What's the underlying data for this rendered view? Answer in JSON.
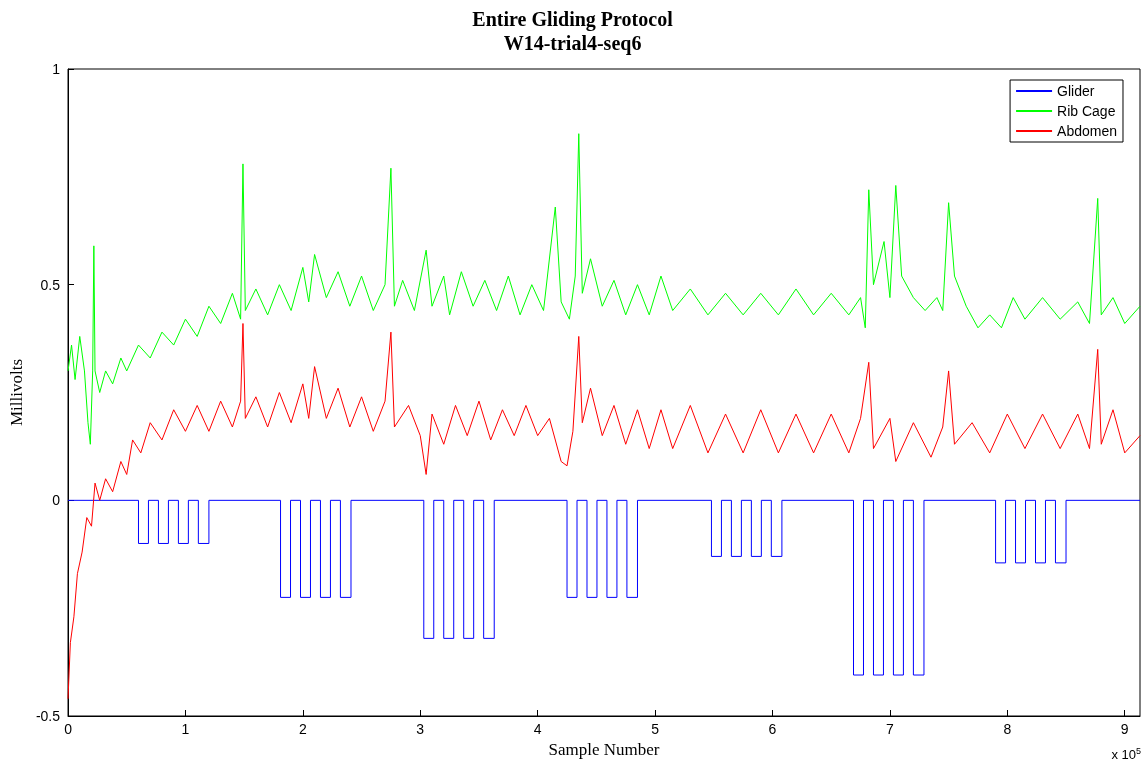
{
  "chart_data": {
    "type": "line",
    "title": "Entire Gliding Protocol",
    "subtitle": "W14-trial4-seq6",
    "xlabel": "Sample Number",
    "ylabel": "Millivolts",
    "annotations": [
      "x 10$^{5}$"
    ],
    "xlim": [
      0,
      9.13
    ],
    "xticks": [
      0,
      1,
      2,
      3,
      4,
      5,
      6,
      7,
      8,
      9
    ],
    "ylim": [
      -0.5,
      1
    ],
    "yticks": [
      -0.5,
      0,
      0.5,
      1
    ],
    "grid": false,
    "legend": "top right",
    "marker": "none",
    "line_style": "solid",
    "series": [
      {
        "name": "Glider",
        "color": "#0000ff",
        "x": [
          0,
          0.6,
          0.6,
          0.685,
          0.685,
          0.77,
          0.77,
          0.855,
          0.855,
          0.94,
          0.94,
          1.025,
          1.025,
          1.11,
          1.11,
          1.2,
          1.2,
          1.81,
          1.81,
          1.895,
          1.895,
          1.98,
          1.98,
          2.065,
          2.065,
          2.15,
          2.15,
          2.235,
          2.235,
          2.32,
          2.32,
          2.41,
          2.41,
          3.03,
          3.03,
          3.115,
          3.115,
          3.2,
          3.2,
          3.285,
          3.285,
          3.37,
          3.37,
          3.455,
          3.455,
          3.54,
          3.54,
          3.63,
          3.63,
          4.25,
          4.25,
          4.335,
          4.335,
          4.42,
          4.42,
          4.505,
          4.505,
          4.59,
          4.59,
          4.675,
          4.675,
          4.76,
          4.76,
          4.85,
          4.85,
          5.48,
          5.48,
          5.565,
          5.565,
          5.65,
          5.65,
          5.735,
          5.735,
          5.82,
          5.82,
          5.905,
          5.905,
          5.99,
          5.99,
          6.08,
          6.08,
          6.69,
          6.69,
          6.775,
          6.775,
          6.86,
          6.86,
          6.945,
          6.945,
          7.03,
          7.03,
          7.115,
          7.115,
          7.2,
          7.2,
          7.29,
          7.29,
          7.9,
          7.9,
          7.985,
          7.985,
          8.07,
          8.07,
          8.155,
          8.155,
          8.24,
          8.24,
          8.325,
          8.325,
          8.41,
          8.41,
          8.5,
          8.5,
          9.13
        ],
        "values": [
          0,
          0,
          -0.1,
          -0.1,
          0,
          0,
          -0.1,
          -0.1,
          0,
          0,
          -0.1,
          -0.1,
          0,
          0,
          -0.1,
          -0.1,
          0,
          0,
          -0.225,
          -0.225,
          0,
          0,
          -0.225,
          -0.225,
          0,
          0,
          -0.225,
          -0.225,
          0,
          0,
          -0.225,
          -0.225,
          0,
          0,
          -0.32,
          -0.32,
          0,
          0,
          -0.32,
          -0.32,
          0,
          0,
          -0.32,
          -0.32,
          0,
          0,
          -0.32,
          -0.32,
          0,
          0,
          -0.225,
          -0.225,
          0,
          0,
          -0.225,
          -0.225,
          0,
          0,
          -0.225,
          -0.225,
          0,
          0,
          -0.225,
          -0.225,
          0,
          0,
          -0.13,
          -0.13,
          0,
          0,
          -0.13,
          -0.13,
          0,
          0,
          -0.13,
          -0.13,
          0,
          0,
          -0.13,
          -0.13,
          0,
          0,
          -0.405,
          -0.405,
          0,
          0,
          -0.405,
          -0.405,
          0,
          0,
          -0.405,
          -0.405,
          0,
          0,
          -0.405,
          -0.405,
          0,
          0,
          -0.145,
          -0.145,
          0,
          0,
          -0.145,
          -0.145,
          0,
          0,
          -0.145,
          -0.145,
          0,
          0,
          -0.145,
          -0.145,
          0,
          0
        ]
      },
      {
        "name": "Rib Cage",
        "color": "#00ff00",
        "x": [
          0,
          0.03,
          0.06,
          0.1,
          0.14,
          0.17,
          0.19,
          0.21,
          0.22,
          0.23,
          0.27,
          0.32,
          0.38,
          0.45,
          0.5,
          0.6,
          0.7,
          0.8,
          0.9,
          1.0,
          1.1,
          1.2,
          1.3,
          1.4,
          1.47,
          1.49,
          1.51,
          1.6,
          1.7,
          1.8,
          1.9,
          2.0,
          2.05,
          2.1,
          2.2,
          2.3,
          2.4,
          2.5,
          2.6,
          2.7,
          2.75,
          2.78,
          2.85,
          2.95,
          3.05,
          3.1,
          3.2,
          3.25,
          3.35,
          3.45,
          3.55,
          3.65,
          3.75,
          3.85,
          3.95,
          4.05,
          4.15,
          4.2,
          4.27,
          4.32,
          4.35,
          4.38,
          4.45,
          4.55,
          4.65,
          4.75,
          4.85,
          4.95,
          5.05,
          5.15,
          5.3,
          5.45,
          5.6,
          5.75,
          5.9,
          6.05,
          6.2,
          6.35,
          6.5,
          6.65,
          6.75,
          6.79,
          6.82,
          6.86,
          6.95,
          7.0,
          7.05,
          7.1,
          7.2,
          7.3,
          7.4,
          7.45,
          7.5,
          7.55,
          7.65,
          7.75,
          7.85,
          7.95,
          8.05,
          8.15,
          8.3,
          8.45,
          8.6,
          8.7,
          8.77,
          8.8,
          8.9,
          9.0,
          9.13
        ],
        "values": [
          0.3,
          0.36,
          0.28,
          0.38,
          0.3,
          0.18,
          0.13,
          0.3,
          0.59,
          0.3,
          0.25,
          0.3,
          0.27,
          0.33,
          0.3,
          0.36,
          0.33,
          0.39,
          0.36,
          0.42,
          0.38,
          0.45,
          0.41,
          0.48,
          0.42,
          0.78,
          0.44,
          0.49,
          0.43,
          0.5,
          0.44,
          0.54,
          0.46,
          0.57,
          0.47,
          0.53,
          0.45,
          0.52,
          0.44,
          0.5,
          0.77,
          0.45,
          0.51,
          0.44,
          0.58,
          0.45,
          0.52,
          0.43,
          0.53,
          0.45,
          0.51,
          0.44,
          0.52,
          0.43,
          0.5,
          0.44,
          0.68,
          0.46,
          0.42,
          0.52,
          0.85,
          0.48,
          0.56,
          0.45,
          0.51,
          0.43,
          0.5,
          0.43,
          0.52,
          0.44,
          0.49,
          0.43,
          0.48,
          0.43,
          0.48,
          0.43,
          0.49,
          0.43,
          0.48,
          0.43,
          0.47,
          0.4,
          0.72,
          0.5,
          0.6,
          0.47,
          0.73,
          0.52,
          0.47,
          0.44,
          0.47,
          0.44,
          0.69,
          0.52,
          0.45,
          0.4,
          0.43,
          0.4,
          0.47,
          0.42,
          0.47,
          0.42,
          0.46,
          0.41,
          0.7,
          0.43,
          0.47,
          0.41,
          0.45
        ]
      },
      {
        "name": "Abdomen",
        "color": "#ff0000",
        "x": [
          0,
          0.02,
          0.05,
          0.08,
          0.12,
          0.16,
          0.2,
          0.23,
          0.27,
          0.32,
          0.38,
          0.45,
          0.5,
          0.55,
          0.62,
          0.7,
          0.8,
          0.9,
          1.0,
          1.1,
          1.2,
          1.3,
          1.4,
          1.47,
          1.49,
          1.51,
          1.6,
          1.7,
          1.8,
          1.9,
          2.0,
          2.05,
          2.1,
          2.2,
          2.3,
          2.4,
          2.5,
          2.6,
          2.7,
          2.75,
          2.78,
          2.9,
          3.0,
          3.05,
          3.1,
          3.2,
          3.3,
          3.4,
          3.5,
          3.6,
          3.7,
          3.8,
          3.9,
          4.0,
          4.1,
          4.2,
          4.25,
          4.3,
          4.35,
          4.38,
          4.45,
          4.55,
          4.65,
          4.75,
          4.85,
          4.95,
          5.05,
          5.15,
          5.3,
          5.45,
          5.6,
          5.75,
          5.9,
          6.05,
          6.2,
          6.35,
          6.5,
          6.65,
          6.75,
          6.82,
          6.86,
          7.0,
          7.05,
          7.2,
          7.35,
          7.45,
          7.5,
          7.55,
          7.7,
          7.85,
          8.0,
          8.15,
          8.3,
          8.45,
          8.6,
          8.7,
          8.77,
          8.8,
          8.9,
          9.0,
          9.13
        ],
        "values": [
          -0.46,
          -0.33,
          -0.27,
          -0.17,
          -0.12,
          -0.04,
          -0.06,
          0.04,
          0.0,
          0.05,
          0.02,
          0.09,
          0.06,
          0.14,
          0.11,
          0.18,
          0.14,
          0.21,
          0.16,
          0.22,
          0.16,
          0.23,
          0.17,
          0.23,
          0.41,
          0.19,
          0.24,
          0.17,
          0.25,
          0.18,
          0.27,
          0.19,
          0.31,
          0.19,
          0.26,
          0.17,
          0.24,
          0.16,
          0.23,
          0.39,
          0.17,
          0.22,
          0.15,
          0.06,
          0.2,
          0.13,
          0.22,
          0.15,
          0.23,
          0.14,
          0.21,
          0.15,
          0.22,
          0.15,
          0.19,
          0.09,
          0.08,
          0.16,
          0.38,
          0.18,
          0.26,
          0.15,
          0.22,
          0.13,
          0.21,
          0.12,
          0.21,
          0.12,
          0.22,
          0.11,
          0.2,
          0.11,
          0.21,
          0.11,
          0.2,
          0.11,
          0.2,
          0.11,
          0.19,
          0.32,
          0.12,
          0.19,
          0.09,
          0.18,
          0.1,
          0.17,
          0.3,
          0.13,
          0.18,
          0.11,
          0.2,
          0.12,
          0.2,
          0.12,
          0.2,
          0.12,
          0.35,
          0.13,
          0.21,
          0.11,
          0.15
        ]
      }
    ]
  }
}
